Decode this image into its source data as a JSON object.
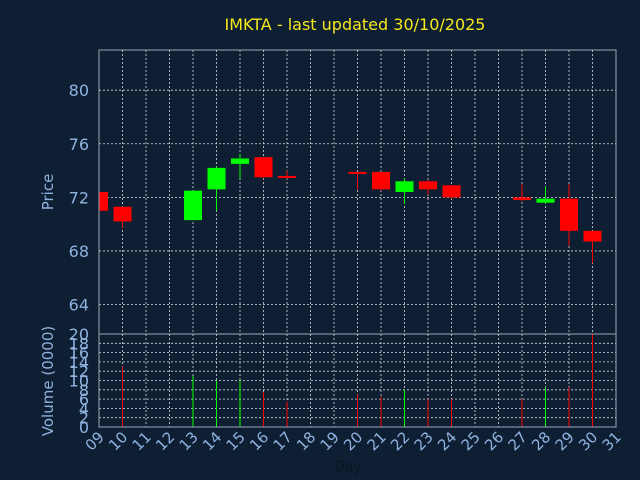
{
  "chart_data": {
    "type": "candlestick",
    "title": "IMKTA - last updated 30/10/2025",
    "xlabel": "Day",
    "price_ylabel": "Price",
    "volume_ylabel": "Volume (0000)",
    "x_ticks": [
      "09",
      "10",
      "11",
      "12",
      "13",
      "14",
      "15",
      "16",
      "17",
      "18",
      "19",
      "20",
      "21",
      "22",
      "23",
      "24",
      "25",
      "26",
      "27",
      "28",
      "29",
      "30",
      "31"
    ],
    "price_ylim": [
      61.8,
      83.0
    ],
    "price_ticks": [
      "64",
      "68",
      "72",
      "76",
      "80"
    ],
    "volume_ylim": [
      0,
      20
    ],
    "volume_ticks": [
      "0",
      "2",
      "4",
      "6",
      "8",
      "10",
      "12",
      "14",
      "16",
      "18",
      "20"
    ],
    "up_color": "#00ff00",
    "down_color": "#ff0000",
    "grid": true,
    "candles": [
      {
        "day": 9,
        "open": 72.4,
        "high": 72.4,
        "low": 71.0,
        "close": 71.0,
        "volume": 0
      },
      {
        "day": 10,
        "open": 71.3,
        "high": 71.3,
        "low": 69.7,
        "close": 70.2,
        "volume": 13
      },
      {
        "day": 13,
        "open": 70.3,
        "high": 72.5,
        "low": 70.3,
        "close": 72.5,
        "volume": 11
      },
      {
        "day": 14,
        "open": 72.6,
        "high": 74.3,
        "low": 71.0,
        "close": 74.2,
        "volume": 10
      },
      {
        "day": 15,
        "open": 74.5,
        "high": 75.2,
        "low": 73.4,
        "close": 74.9,
        "volume": 10
      },
      {
        "day": 16,
        "open": 75.0,
        "high": 75.0,
        "low": 73.4,
        "close": 73.5,
        "volume": 7.5
      },
      {
        "day": 17,
        "open": 73.6,
        "high": 74.0,
        "low": 73.4,
        "close": 73.5,
        "volume": 5.5
      },
      {
        "day": 20,
        "open": 73.9,
        "high": 73.9,
        "low": 72.6,
        "close": 73.8,
        "volume": 7
      },
      {
        "day": 21,
        "open": 73.9,
        "high": 73.9,
        "low": 72.5,
        "close": 72.6,
        "volume": 6.5
      },
      {
        "day": 22,
        "open": 72.4,
        "high": 73.4,
        "low": 71.5,
        "close": 73.2,
        "volume": 8
      },
      {
        "day": 23,
        "open": 73.2,
        "high": 73.3,
        "low": 72.2,
        "close": 72.6,
        "volume": 6
      },
      {
        "day": 24,
        "open": 72.9,
        "high": 72.9,
        "low": 71.9,
        "close": 72.0,
        "volume": 6
      },
      {
        "day": 27,
        "open": 72.0,
        "high": 73.0,
        "low": 71.7,
        "close": 71.8,
        "volume": 6
      },
      {
        "day": 28,
        "open": 71.6,
        "high": 72.8,
        "low": 71.5,
        "close": 71.9,
        "volume": 8.5
      },
      {
        "day": 29,
        "open": 71.9,
        "high": 73.0,
        "low": 68.4,
        "close": 69.5,
        "volume": 8.5
      },
      {
        "day": 30,
        "open": 69.5,
        "high": 69.5,
        "low": 67.1,
        "close": 68.7,
        "volume": 20
      }
    ]
  }
}
